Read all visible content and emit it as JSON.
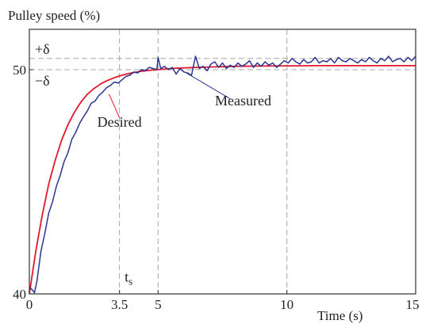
{
  "chart_data": {
    "type": "line",
    "ylabel": "Pulley speed (%)",
    "xlabel": "Time (s)",
    "xlim": [
      0,
      15
    ],
    "ylim": [
      40,
      51.8
    ],
    "x_ticks": [
      {
        "value": 0,
        "label": "0"
      },
      {
        "value": 3.5,
        "label": "3.5"
      },
      {
        "value": 5,
        "label": "5"
      },
      {
        "value": 10,
        "label": "10"
      },
      {
        "value": 15,
        "label": "15"
      }
    ],
    "y_ticks": [
      {
        "value": 40,
        "label": "40"
      },
      {
        "value": 50,
        "label": "50"
      }
    ],
    "reference_lines": {
      "horizontal": [
        {
          "value": 50.5,
          "label": "+δ"
        },
        {
          "value": 50.0,
          "label": "−δ"
        }
      ],
      "vertical": [
        3.5,
        5,
        10
      ],
      "style": "dashed",
      "color": "#a8a8a8"
    },
    "annotations": [
      {
        "text": "Desired",
        "color": "#e0182a",
        "x": 3.5,
        "y": 47.45
      },
      {
        "text": "Measured",
        "color": "#2a3590",
        "x": 8.3,
        "y": 48.4
      },
      {
        "text": "t",
        "subscript": "s",
        "x": 3.7,
        "y": 40.55
      }
    ],
    "series": [
      {
        "name": "Desired",
        "color": "#e0182a",
        "x": [
          0,
          0.25,
          0.5,
          0.75,
          1,
          1.25,
          1.5,
          1.75,
          2,
          2.25,
          2.5,
          2.75,
          3,
          3.25,
          3.5,
          3.75,
          4,
          4.25,
          4.5,
          4.75,
          5,
          5.5,
          6,
          6.5,
          7,
          8,
          9,
          10,
          11,
          12,
          13,
          14,
          15
        ],
        "y": [
          40.0,
          41.9,
          43.5,
          44.9,
          45.95,
          46.85,
          47.55,
          48.1,
          48.55,
          48.9,
          49.15,
          49.35,
          49.5,
          49.62,
          49.72,
          49.8,
          49.86,
          49.91,
          49.95,
          49.98,
          50.0,
          50.05,
          50.08,
          50.1,
          50.12,
          50.15,
          50.16,
          50.17,
          50.18,
          50.18,
          50.18,
          50.18,
          50.18
        ]
      },
      {
        "name": "Measured",
        "color": "#2a3590",
        "x": [
          0,
          0.1,
          0.2,
          0.3,
          0.45,
          0.6,
          0.75,
          0.9,
          1.05,
          1.2,
          1.35,
          1.5,
          1.65,
          1.8,
          1.95,
          2.1,
          2.25,
          2.4,
          2.55,
          2.7,
          2.85,
          3.0,
          3.15,
          3.3,
          3.45,
          3.6,
          3.75,
          3.9,
          4.05,
          4.2,
          4.35,
          4.5,
          4.65,
          4.8,
          4.95,
          5.0,
          5.1,
          5.25,
          5.4,
          5.55,
          5.7,
          5.85,
          6.0,
          6.15,
          6.3,
          6.45,
          6.6,
          6.75,
          6.9,
          7.05,
          7.2,
          7.35,
          7.5,
          7.65,
          7.8,
          7.95,
          8.1,
          8.25,
          8.4,
          8.55,
          8.7,
          8.85,
          9.0,
          9.15,
          9.3,
          9.45,
          9.6,
          9.75,
          9.9,
          10.05,
          10.2,
          10.35,
          10.5,
          10.65,
          10.8,
          10.95,
          11.1,
          11.25,
          11.4,
          11.55,
          11.7,
          11.85,
          12.0,
          12.15,
          12.3,
          12.45,
          12.6,
          12.75,
          12.9,
          13.05,
          13.2,
          13.35,
          13.5,
          13.65,
          13.8,
          13.95,
          14.1,
          14.25,
          14.4,
          14.55,
          14.7,
          14.85,
          15.0
        ],
        "y": [
          40.3,
          40.2,
          40.05,
          40.6,
          41.9,
          42.7,
          43.6,
          44.1,
          44.8,
          45.3,
          45.9,
          46.3,
          46.9,
          47.2,
          47.6,
          47.9,
          48.15,
          48.5,
          48.6,
          48.85,
          49.0,
          49.2,
          49.3,
          49.45,
          49.4,
          49.55,
          49.7,
          49.75,
          49.9,
          49.85,
          50.0,
          49.95,
          50.1,
          50.05,
          50.0,
          50.55,
          50.05,
          50.15,
          50.0,
          50.1,
          49.8,
          50.05,
          49.9,
          49.85,
          49.75,
          50.6,
          50.05,
          50.15,
          49.95,
          50.25,
          50.35,
          50.1,
          50.3,
          50.05,
          50.2,
          50.1,
          50.3,
          50.15,
          50.25,
          50.4,
          50.1,
          50.3,
          50.15,
          50.35,
          50.2,
          50.3,
          50.1,
          50.25,
          50.4,
          50.3,
          50.5,
          50.35,
          50.25,
          50.45,
          50.3,
          50.35,
          50.55,
          50.3,
          50.4,
          50.35,
          50.5,
          50.3,
          50.55,
          50.4,
          50.35,
          50.5,
          50.4,
          50.3,
          50.45,
          50.35,
          50.55,
          50.4,
          50.3,
          50.5,
          50.4,
          50.6,
          50.35,
          50.45,
          50.5,
          50.35,
          50.55,
          50.4,
          50.6
        ]
      }
    ]
  }
}
